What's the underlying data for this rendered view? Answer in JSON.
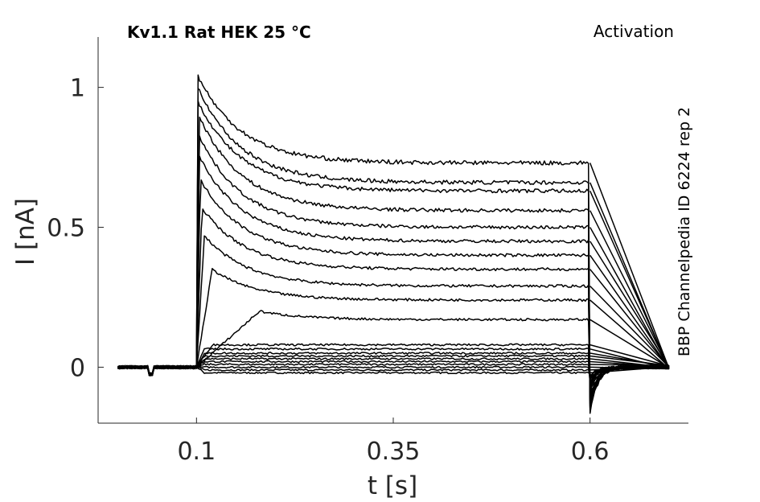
{
  "chart_data": {
    "type": "line",
    "title": "Kv1.1  Rat  HEK  25 °C",
    "title_right": "Activation",
    "side_label": "BBP Channelpedia ID 6224 rep 2",
    "xlabel": "t [s]",
    "ylabel": "I [nA]",
    "xlim": [
      -0.025,
      0.725
    ],
    "ylim": [
      -0.2,
      1.18
    ],
    "xticks": [
      0.1,
      0.35,
      0.6
    ],
    "xtick_labels": [
      "0.1",
      "0.35",
      "0.6"
    ],
    "yticks": [
      0,
      0.5,
      1
    ],
    "ytick_labels": [
      "0",
      "0.5",
      "1"
    ],
    "grid": false,
    "line_color": "#000000",
    "step_on": 0.1,
    "step_off": 0.6,
    "baseline_dip": {
      "t_start": 0.04,
      "t_end": 0.045,
      "value": -0.025
    },
    "series": [
      {
        "peak": -0.02,
        "t_peak": 0.11,
        "steady": -0.02,
        "tail_min": -0.03
      },
      {
        "peak": -0.01,
        "t_peak": 0.11,
        "steady": -0.01,
        "tail_min": -0.03
      },
      {
        "peak": 0.0,
        "t_peak": 0.11,
        "steady": 0.0,
        "tail_min": -0.04
      },
      {
        "peak": 0.01,
        "t_peak": 0.11,
        "steady": 0.01,
        "tail_min": -0.04
      },
      {
        "peak": 0.02,
        "t_peak": 0.11,
        "steady": 0.02,
        "tail_min": -0.05
      },
      {
        "peak": 0.03,
        "t_peak": 0.11,
        "steady": 0.03,
        "tail_min": -0.05
      },
      {
        "peak": 0.04,
        "t_peak": 0.11,
        "steady": 0.04,
        "tail_min": -0.06
      },
      {
        "peak": 0.05,
        "t_peak": 0.11,
        "steady": 0.05,
        "tail_min": -0.06
      },
      {
        "peak": 0.065,
        "t_peak": 0.11,
        "steady": 0.065,
        "tail_min": -0.07
      },
      {
        "peak": 0.08,
        "t_peak": 0.12,
        "steady": 0.08,
        "tail_min": -0.07
      },
      {
        "peak": 0.2,
        "t_peak": 0.18,
        "steady": 0.17,
        "tail_min": -0.08
      },
      {
        "peak": 0.35,
        "t_peak": 0.12,
        "steady": 0.24,
        "tail_min": -0.09
      },
      {
        "peak": 0.47,
        "t_peak": 0.11,
        "steady": 0.29,
        "tail_min": -0.1
      },
      {
        "peak": 0.57,
        "t_peak": 0.107,
        "steady": 0.35,
        "tail_min": -0.11
      },
      {
        "peak": 0.67,
        "t_peak": 0.105,
        "steady": 0.4,
        "tail_min": -0.12
      },
      {
        "peak": 0.75,
        "t_peak": 0.104,
        "steady": 0.45,
        "tail_min": -0.13
      },
      {
        "peak": 0.83,
        "t_peak": 0.103,
        "steady": 0.5,
        "tail_min": -0.14
      },
      {
        "peak": 0.9,
        "t_peak": 0.103,
        "steady": 0.56,
        "tail_min": -0.14
      },
      {
        "peak": 0.95,
        "t_peak": 0.102,
        "steady": 0.63,
        "tail_min": -0.15
      },
      {
        "peak": 1.0,
        "t_peak": 0.102,
        "steady": 0.66,
        "tail_min": -0.15
      },
      {
        "peak": 1.04,
        "t_peak": 0.102,
        "steady": 0.73,
        "tail_min": -0.16
      }
    ]
  }
}
